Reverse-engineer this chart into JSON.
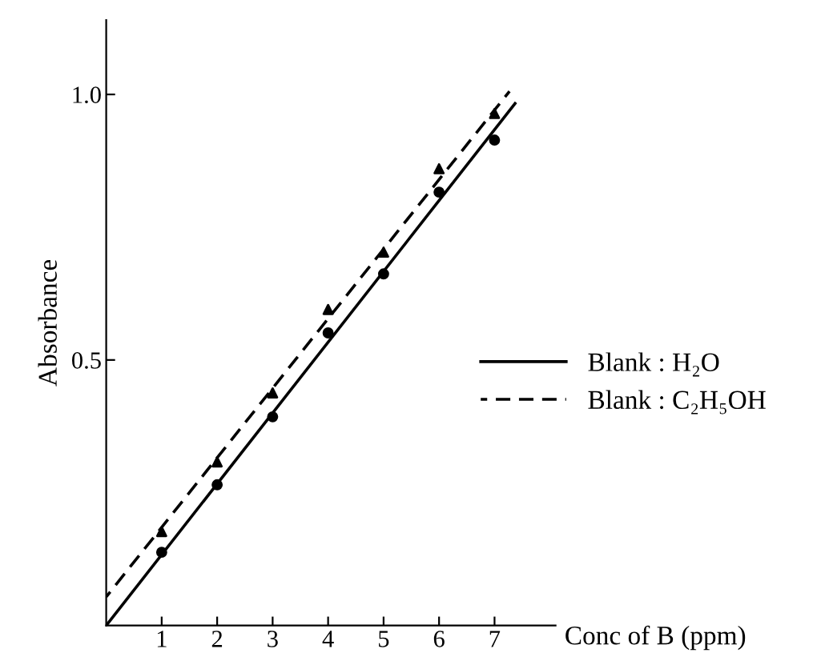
{
  "chart_data": {
    "type": "scatter",
    "xlabel": "Conc of B (ppm)",
    "ylabel": "Absorbance",
    "xlim": [
      0,
      8.1
    ],
    "ylim": [
      0,
      1.14
    ],
    "xticks": [
      1,
      2,
      3,
      4,
      5,
      6,
      7
    ],
    "yticks": [
      {
        "value": 0.5,
        "label": "0.5"
      },
      {
        "value": 1.0,
        "label": "1.0"
      }
    ],
    "grid": false,
    "legend": "right",
    "series": [
      {
        "type": "line",
        "name": "Blank : H₂O",
        "color": "#000000",
        "line_style": "solid",
        "marker": "none",
        "x": [
          0,
          7.37
        ],
        "values": [
          0,
          0.983
        ]
      },
      {
        "type": "line",
        "name": "Blank : C₂H₅OH",
        "color": "#000000",
        "line_style": "dashed",
        "marker": "none",
        "x": [
          0,
          7.27
        ],
        "values": [
          0.054,
          1.006
        ]
      },
      {
        "color": "#000000",
        "marker": "circle",
        "x": [
          1,
          2,
          3,
          4,
          5,
          6,
          7
        ],
        "values": [
          0.138,
          0.265,
          0.393,
          0.551,
          0.662,
          0.816,
          0.914
        ]
      },
      {
        "color": "#000000",
        "marker": "triangle",
        "x": [
          1,
          2,
          3,
          4,
          5,
          6,
          7
        ],
        "values": [
          0.177,
          0.308,
          0.438,
          0.595,
          0.703,
          0.86,
          0.964
        ]
      }
    ]
  }
}
